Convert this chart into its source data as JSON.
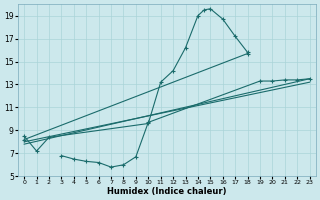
{
  "xlabel": "Humidex (Indice chaleur)",
  "bg_color": "#cce8ec",
  "grid_color": "#aad4d8",
  "line_color": "#1a6b6b",
  "xlim": [
    -0.5,
    23.5
  ],
  "ylim": [
    5,
    20
  ],
  "xticks": [
    0,
    1,
    2,
    3,
    4,
    5,
    6,
    7,
    8,
    9,
    10,
    11,
    12,
    13,
    14,
    15,
    16,
    17,
    18,
    19,
    20,
    21,
    22,
    23
  ],
  "yticks": [
    5,
    7,
    9,
    11,
    13,
    15,
    17,
    19
  ],
  "line1_x": [
    0,
    1,
    2,
    10,
    11,
    12,
    13,
    14,
    14.5,
    15,
    16,
    17,
    18
  ],
  "line1_y": [
    8.5,
    7.2,
    8.4,
    9.6,
    13.2,
    14.2,
    16.2,
    19.0,
    19.5,
    19.6,
    18.7,
    17.2,
    15.8
  ],
  "line2_x": [
    3,
    4,
    5,
    6,
    7,
    8,
    9,
    10,
    19,
    20,
    21,
    22,
    23
  ],
  "line2_y": [
    6.8,
    6.5,
    6.3,
    6.2,
    5.8,
    6.0,
    6.7,
    9.7,
    13.3,
    13.3,
    13.4,
    13.4,
    13.5
  ],
  "line3_x": [
    0,
    18
  ],
  "line3_y": [
    8.2,
    15.7
  ],
  "line4_x": [
    0,
    23
  ],
  "line4_y": [
    7.8,
    13.5
  ],
  "line5_x": [
    0,
    23
  ],
  "line5_y": [
    8.0,
    13.2
  ]
}
